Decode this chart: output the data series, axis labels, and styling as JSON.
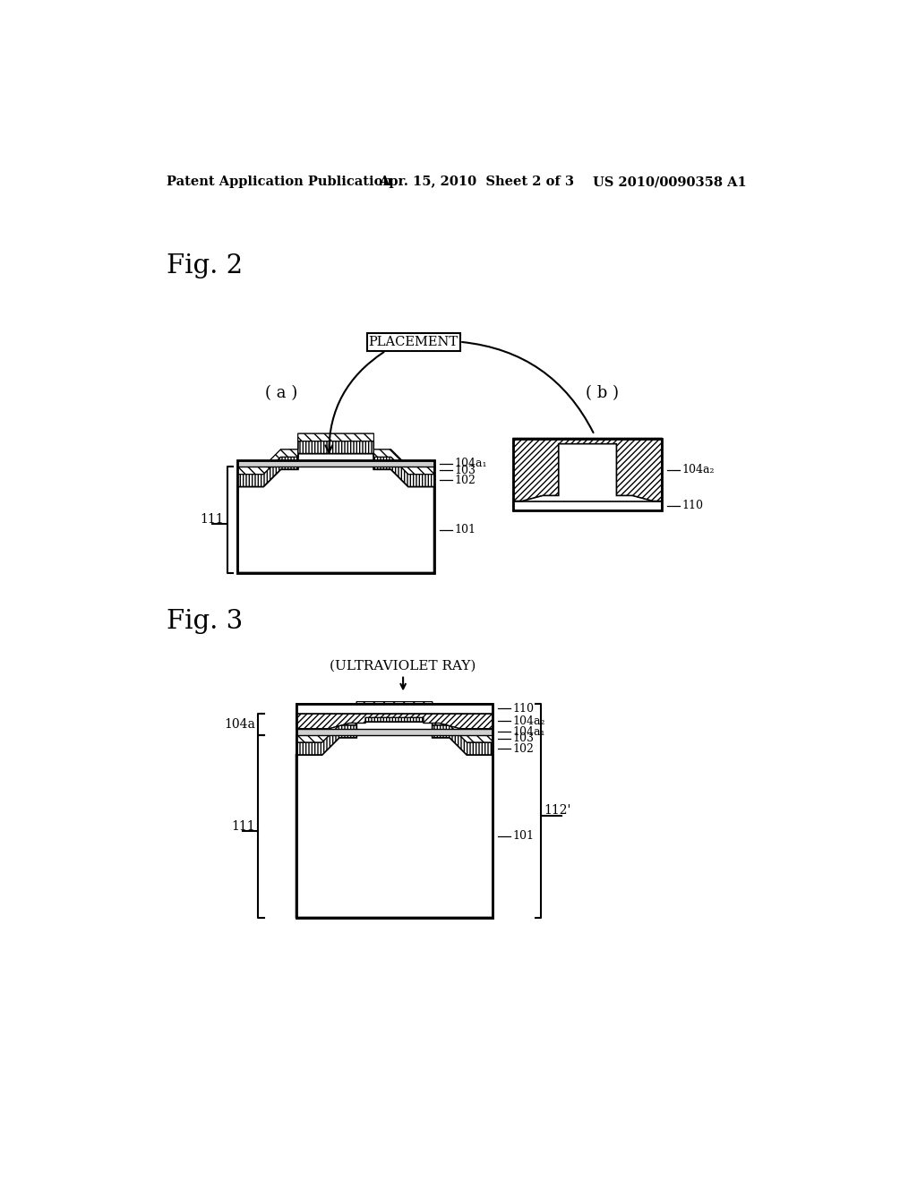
{
  "bg_color": "#ffffff",
  "header_left": "Patent Application Publication",
  "header_mid": "Apr. 15, 2010  Sheet 2 of 3",
  "header_right": "US 2010/0090358 A1",
  "fig2_label": "Fig. 2",
  "fig3_label": "Fig. 3",
  "placement_label": "PLACEMENT",
  "uv_label": "(ULTRAVIOLET RAY)",
  "label_a": "( a )",
  "label_b": "( b )"
}
